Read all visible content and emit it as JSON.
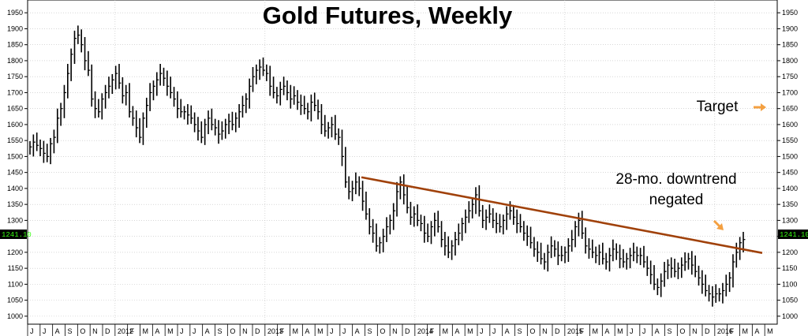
{
  "chart_data": {
    "type": "bar",
    "title": "Gold Futures, Weekly",
    "y_ticks": [
      1000,
      1050,
      1100,
      1150,
      1200,
      1250,
      1300,
      1350,
      1400,
      1450,
      1500,
      1550,
      1600,
      1650,
      1700,
      1750,
      1800,
      1850,
      1900,
      1950
    ],
    "ylim": [
      975,
      1990
    ],
    "x_ticks": [
      "J",
      "J",
      "A",
      "S",
      "O",
      "N",
      "D",
      "2012",
      "F",
      "M",
      "A",
      "M",
      "J",
      "J",
      "A",
      "S",
      "O",
      "N",
      "D",
      "2013",
      "F",
      "M",
      "A",
      "M",
      "J",
      "J",
      "A",
      "S",
      "O",
      "N",
      "D",
      "2014",
      "F",
      "M",
      "A",
      "M",
      "J",
      "J",
      "A",
      "S",
      "O",
      "N",
      "D",
      "2015",
      "F",
      "M",
      "A",
      "M",
      "J",
      "J",
      "A",
      "S",
      "O",
      "N",
      "D",
      "2016",
      "F",
      "M",
      "A",
      "M"
    ],
    "last_price_label": "1241.10",
    "weekly_closes": [
      1530,
      1545,
      1535,
      1525,
      1510,
      1500,
      1540,
      1560,
      1620,
      1650,
      1700,
      1760,
      1820,
      1870,
      1880,
      1850,
      1800,
      1770,
      1680,
      1650,
      1640,
      1680,
      1700,
      1720,
      1740,
      1760,
      1730,
      1690,
      1700,
      1640,
      1620,
      1590,
      1560,
      1620,
      1660,
      1700,
      1720,
      1740,
      1760,
      1745,
      1720,
      1700,
      1680,
      1650,
      1640,
      1640,
      1630,
      1620,
      1600,
      1580,
      1560,
      1600,
      1620,
      1600,
      1590,
      1570,
      1580,
      1600,
      1610,
      1600,
      1620,
      1640,
      1660,
      1680,
      1720,
      1750,
      1770,
      1780,
      1770,
      1760,
      1720,
      1700,
      1690,
      1710,
      1720,
      1700,
      1680,
      1690,
      1670,
      1660,
      1650,
      1640,
      1670,
      1660,
      1640,
      1600,
      1580,
      1590,
      1600,
      1570,
      1560,
      1500,
      1420,
      1390,
      1400,
      1420,
      1400,
      1360,
      1320,
      1280,
      1260,
      1220,
      1230,
      1250,
      1280,
      1300,
      1330,
      1390,
      1420,
      1380,
      1340,
      1310,
      1320,
      1300,
      1290,
      1260,
      1250,
      1280,
      1300,
      1280,
      1240,
      1220,
      1200,
      1220,
      1240,
      1260,
      1290,
      1310,
      1330,
      1350,
      1380,
      1330,
      1300,
      1310,
      1320,
      1300,
      1290,
      1280,
      1300,
      1320,
      1330,
      1310,
      1290,
      1280,
      1260,
      1250,
      1230,
      1210,
      1200,
      1180,
      1170,
      1200,
      1220,
      1210,
      1190,
      1190,
      1200,
      1220,
      1240,
      1280,
      1300,
      1260,
      1220,
      1210,
      1200,
      1190,
      1200,
      1180,
      1170,
      1190,
      1210,
      1200,
      1180,
      1170,
      1180,
      1190,
      1200,
      1190,
      1190,
      1170,
      1150,
      1130,
      1100,
      1090,
      1110,
      1140,
      1160,
      1150,
      1140,
      1150,
      1160,
      1170,
      1180,
      1160,
      1140,
      1120,
      1100,
      1080,
      1070,
      1060,
      1070,
      1070,
      1080,
      1100,
      1120,
      1170,
      1200,
      1230,
      1240
    ],
    "trendline": {
      "start_price": 1435,
      "end_price": 1198
    },
    "annotations": {
      "target": "Target",
      "downtrend_line1": "28-mo. downtrend",
      "downtrend_line2": "negated"
    },
    "colors": {
      "bars": "#000000",
      "trendline": "#a0410a",
      "arrow": "#f4a041",
      "grid": "#bfbfbf",
      "badge_bg": "#000000",
      "badge_text": "#39ff14"
    },
    "grid": true
  }
}
